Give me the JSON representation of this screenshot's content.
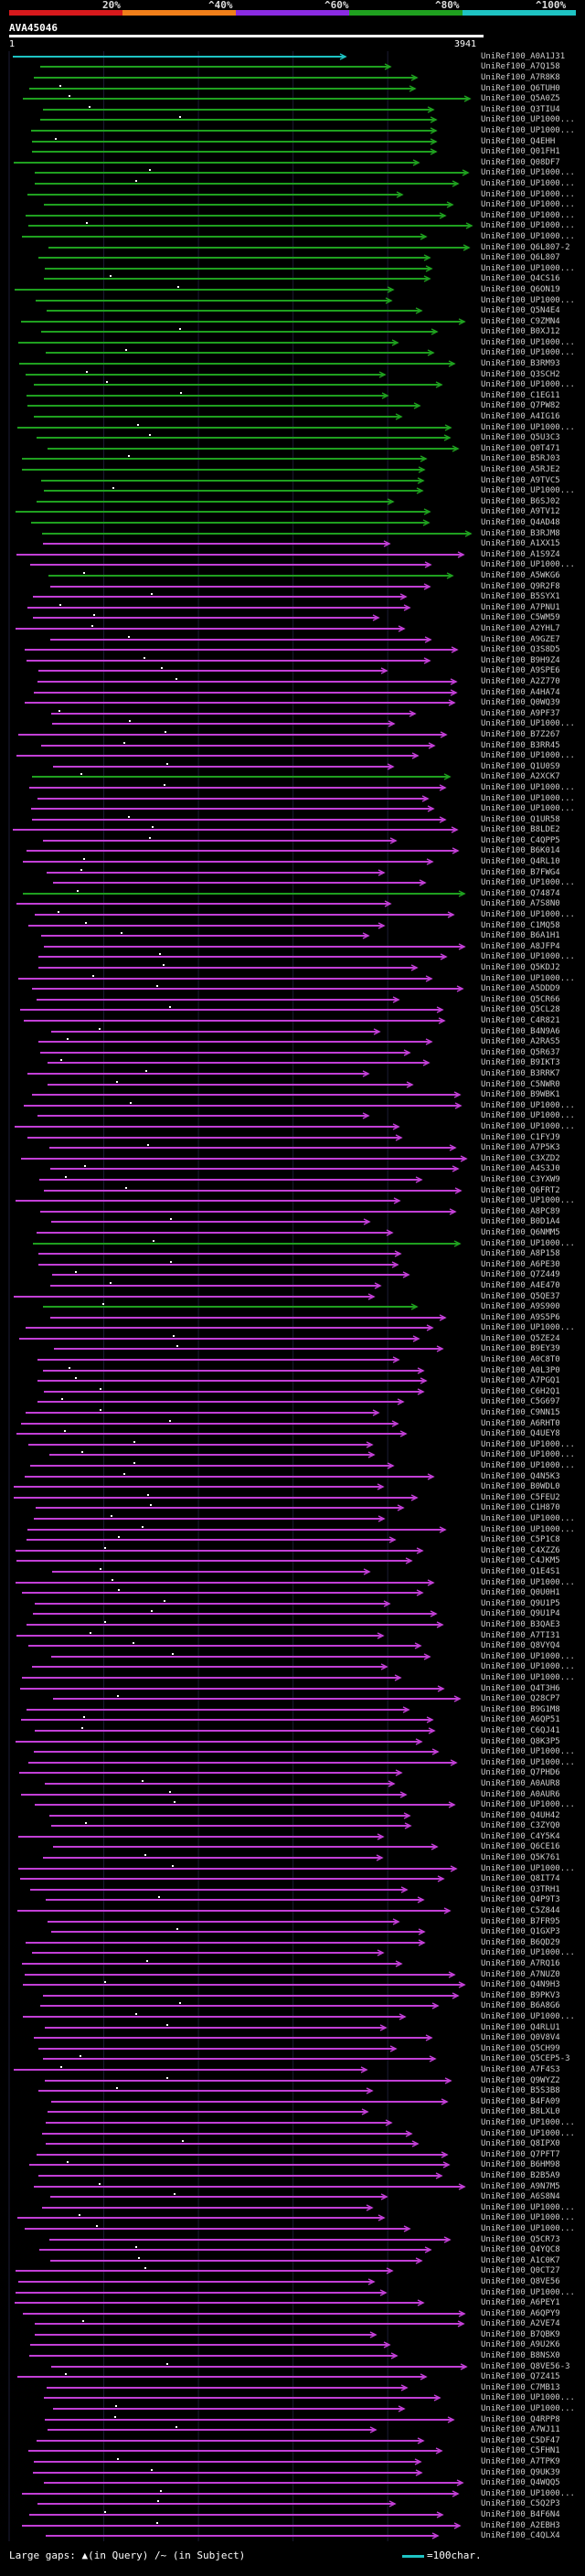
{
  "scale": {
    "labels": [
      "20%",
      "^40%",
      "^60%",
      "^80%",
      "^100%"
    ],
    "colors": [
      "#d7191c",
      "#f07f1a",
      "#8a2be2",
      "#1fa01f",
      "#1ec3c3"
    ]
  },
  "query": {
    "title": "AVA45046",
    "start": "1",
    "end": "3941"
  },
  "hits": {
    "labels": [
      "UniRef100_A0A1J31",
      "UniRef100_A7Q158",
      "UniRef100_A7R8K8",
      "UniRef100_Q6TUH0",
      "UniRef100_Q5A0Z5",
      "UniRef100_Q3TIU4",
      "UniRef100_UP1000...",
      "UniRef100_UP1000...",
      "UniRef100_Q4EHH",
      "UniRef100_Q01FH1",
      "UniRef100_Q08DF7",
      "UniRef100_UP1000...",
      "UniRef100_UP1000...",
      "UniRef100_UP1000...",
      "UniRef100_UP1000...",
      "UniRef100_UP1000...",
      "UniRef100_UP1000...",
      "UniRef100_UP1000...",
      "UniRef100_Q6L807-2",
      "UniRef100_Q6L807",
      "UniRef100_UP1000...",
      "UniRef100_Q4CS16",
      "UniRef100_Q6ON19",
      "UniRef100_UP1000...",
      "UniRef100_Q5N4E4",
      "UniRef100_C9ZMN4",
      "UniRef100_B0XJ12",
      "UniRef100_UP1000...",
      "UniRef100_UP1000...",
      "UniRef100_B3RM93",
      "UniRef100_Q3SCH2",
      "UniRef100_UP1000...",
      "UniRef100_C1EG11",
      "UniRef100_Q7PW82",
      "UniRef100_A4IG16",
      "UniRef100_UP1000...",
      "UniRef100_Q5U3C3",
      "UniRef100_Q0T471",
      "UniRef100_B5RJ03",
      "UniRef100_A5RJE2",
      "UniRef100_A9TVC5",
      "UniRef100_UP1000...",
      "UniRef100_B6SJ02",
      "UniRef100_A9TV12",
      "UniRef100_Q4AD48",
      "UniRef100_B3RJM8",
      "UniRef100_A1XX15",
      "UniRef100_A1S9Z4",
      "UniRef100_UP1000...",
      "UniRef100_A5WKG6",
      "UniRef100_Q9R2F8",
      "UniRef100_B5SYX1",
      "UniRef100_A7PNU1",
      "UniRef100_C5WM59",
      "UniRef100_A2YHL7",
      "UniRef100_A9GZE7",
      "UniRef100_Q3S8D5",
      "UniRef100_B9H9Z4",
      "UniRef100_A9SPE6",
      "UniRef100_A2Z770",
      "UniRef100_A4HA74",
      "UniRef100_Q0WQ39",
      "UniRef100_A9PF37",
      "UniRef100_UP1000...",
      "UniRef100_B7Z267",
      "UniRef100_B3RR45",
      "UniRef100_UP1000...",
      "UniRef100_Q1U0S9",
      "UniRef100_A2XCK7",
      "UniRef100_UP1000...",
      "UniRef100_UP1000...",
      "UniRef100_UP1000...",
      "UniRef100_Q1UR58",
      "UniRef100_B8LDE2",
      "UniRef100_C4QPP5",
      "UniRef100_B6K014",
      "UniRef100_Q4RL10",
      "UniRef100_B7FWG4",
      "UniRef100_UP1000...",
      "UniRef100_Q74874",
      "UniRef100_A7S8N0",
      "UniRef100_UP1000...",
      "UniRef100_C1MQ58",
      "UniRef100_B6A1H1",
      "UniRef100_A8JFP4",
      "UniRef100_UP1000...",
      "UniRef100_Q5KDJ2",
      "UniRef100_UP1000...",
      "UniRef100_A5DDD9",
      "UniRef100_Q5CR66",
      "UniRef100_Q5CL28",
      "UniRef100_C4R821",
      "UniRef100_B4N9A6",
      "UniRef100_A2RAS5",
      "UniRef100_Q5R637",
      "UniRef100_B9IKT3",
      "UniRef100_B3RRK7",
      "UniRef100_C5NWR0",
      "UniRef100_B9WBK1",
      "UniRef100_UP1000...",
      "UniRef100_UP1000...",
      "UniRef100_UP1000...",
      "UniRef100_C1FYJ9",
      "UniRef100_A7P5K3",
      "UniRef100_C3XZD2",
      "UniRef100_A4S3J0",
      "UniRef100_C3YXW9",
      "UniRef100_Q6FRT2",
      "UniRef100_UP1000...",
      "UniRef100_A8PC89",
      "UniRef100_B0D1A4",
      "UniRef100_Q6NMM5",
      "UniRef100_UP1000...",
      "UniRef100_A8P158",
      "UniRef100_A6PE30",
      "UniRef100_Q7Z449",
      "UniRef100_A4E470",
      "UniRef100_Q5QE37",
      "UniRef100_A9S900",
      "UniRef100_A9S5P6",
      "UniRef100_UP1000...",
      "UniRef100_Q5ZE24",
      "UniRef100_B9EY39",
      "UniRef100_A0C8T0",
      "UniRef100_A0L3P0",
      "UniRef100_A7PGQ1",
      "UniRef100_C6H2Q1",
      "UniRef100_C5G697",
      "UniRef100_C9NN15",
      "UniRef100_A6RHT0",
      "UniRef100_Q4UEY8",
      "UniRef100_UP1000...",
      "UniRef100_UP1000...",
      "UniRef100_UP1000...",
      "UniRef100_Q4N5K3",
      "UniRef100_B0WDL0",
      "UniRef100_C5FEU2",
      "UniRef100_C1H870",
      "UniRef100_UP1000...",
      "UniRef100_UP1000...",
      "UniRef100_C5P1C8",
      "UniRef100_C4XZZ6",
      "UniRef100_C4JKM5",
      "UniRef100_Q1E4S1",
      "UniRef100_UP1000...",
      "UniRef100_Q0U0H1",
      "UniRef100_Q9U1P5",
      "UniRef100_Q9U1P4",
      "UniRef100_B3QAE3",
      "UniRef100_A7TI31",
      "UniRef100_Q8VYQ4",
      "UniRef100_UP1000...",
      "UniRef100_UP1000...",
      "UniRef100_UP1000...",
      "UniRef100_Q4T3H6",
      "UniRef100_Q28CP7",
      "UniRef100_B9G1M8",
      "UniRef100_A6QP51",
      "UniRef100_C6QJ41",
      "UniRef100_Q8K3P5",
      "UniRef100_UP1000...",
      "UniRef100_UP1000...",
      "UniRef100_Q7PHD6",
      "UniRef100_A0AUR8",
      "UniRef100_A0AUR6",
      "UniRef100_UP1000...",
      "UniRef100_Q4UH42",
      "UniRef100_C3ZYQ0",
      "UniRef100_C4Y5K4",
      "UniRef100_Q6CE16",
      "UniRef100_Q5K761",
      "UniRef100_UP1000...",
      "UniRef100_Q8IT74",
      "UniRef100_Q3TRH1",
      "UniRef100_Q4P9T3",
      "UniRef100_C5Z844",
      "UniRef100_B7FR95",
      "UniRef100_Q1GXP3",
      "UniRef100_B6QD29",
      "UniRef100_UP1000...",
      "UniRef100_A7RQ16",
      "UniRef100_A7NUZ0",
      "UniRef100_Q4N9H3",
      "UniRef100_B9PKV3",
      "UniRef100_B6A8G6",
      "UniRef100_UP1000...",
      "UniRef100_Q4RLU1",
      "UniRef100_Q0V8V4",
      "UniRef100_Q5CH99",
      "UniRef100_Q5CEP5-3",
      "UniRef100_A7F4S3",
      "UniRef100_Q9WYZ2",
      "UniRef100_B5S3B8",
      "UniRef100_B4FA09",
      "UniRef100_B8LXL0",
      "UniRef100_UP1000...",
      "UniRef100_UP1000...",
      "UniRef100_Q8IPX0",
      "UniRef100_Q7PFT7",
      "UniRef100_B6HM98",
      "UniRef100_B2B5A9",
      "UniRef100_A9N7M5",
      "UniRef100_A6S8N4",
      "UniRef100_UP1000...",
      "UniRef100_UP1000...",
      "UniRef100_UP1000...",
      "UniRef100_Q5CR73",
      "UniRef100_Q4YQC8",
      "UniRef100_A1C0K7",
      "UniRef100_Q0CT27",
      "UniRef100_Q8VE56",
      "UniRef100_UP1000...",
      "UniRef100_A6PEY1",
      "UniRef100_A6QPY9",
      "UniRef100_A2VE74",
      "UniRef100_B7QBK9",
      "UniRef100_A9U2K6",
      "UniRef100_B8NSX0",
      "UniRef100_Q8VE56-3",
      "UniRef100_Q7Z415",
      "UniRef100_C7MB13",
      "UniRef100_UP1000...",
      "UniRef100_UP1000...",
      "UniRef100_Q4RPP8",
      "UniRef100_A7WJ11",
      "UniRef100_C5DF47",
      "UniRef100_C5FHN1",
      "UniRef100_A7TPK9",
      "UniRef100_Q9UK39",
      "UniRef100_Q4WQQ5",
      "UniRef100_UP1000...",
      "UniRef100_C5Q2P3",
      "UniRef100_B4F6N4",
      "UniRef100_A2EBH3",
      "UniRef100_C4QLX4"
    ]
  },
  "footer": {
    "gaps_label": "Large gaps:",
    "in_query": "▲(in Query)",
    "in_subject": "/~ (in Subject)",
    "legend": "=100char."
  }
}
